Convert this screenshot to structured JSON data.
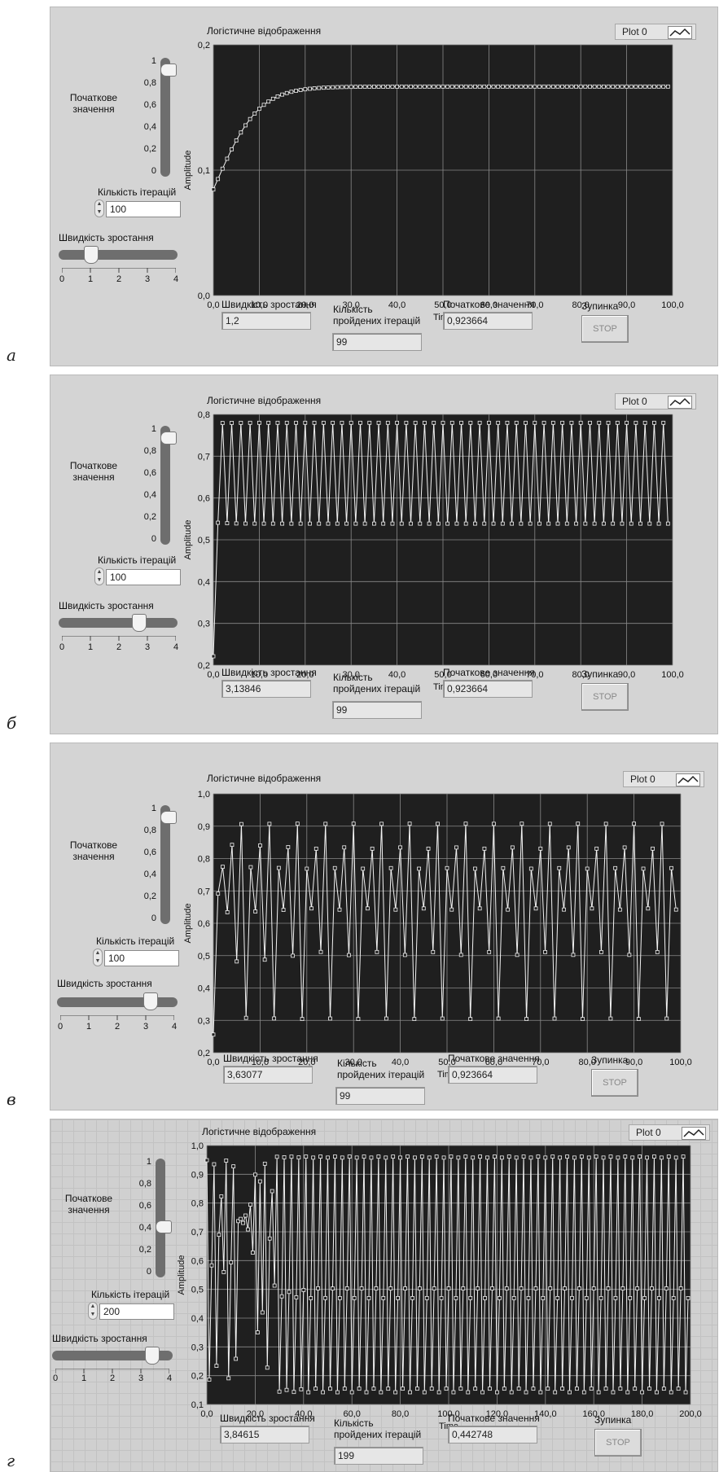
{
  "common": {
    "plot_title": "Логістичне відображення",
    "legend_label": "Plot 0",
    "initial_value_slider_label": "Початкове значення",
    "iterations_label": "Кількість ітерацій",
    "growth_slider_label": "Швидкість зростання",
    "growth_indicator_label": "Швидкість зростання",
    "passed_label": "Кількість пройдених ітерацій",
    "initial_indicator_label": "Початкове значення",
    "stop_label": "Зупинка",
    "stop_button": "STOP",
    "ylabel": "Amplitude",
    "xlabel": "Time",
    "vslider_ticks": [
      "1",
      "0,8",
      "0,6",
      "0,4",
      "0,2",
      "0"
    ],
    "hslider_ticks": [
      "0",
      "1",
      "2",
      "3",
      "4"
    ],
    "icons": [
      "legend-plot-icon",
      "stepper-icon"
    ]
  },
  "panels": [
    {
      "letter": "а",
      "iterations": "100",
      "growth_rate": "1,2",
      "iterations_passed": "99",
      "initial_value": "0,923664",
      "slider_initial_value": 0.92,
      "slider_growth_value": 1.2
    },
    {
      "letter": "б",
      "iterations": "100",
      "growth_rate": "3,13846",
      "iterations_passed": "99",
      "initial_value": "0,923664",
      "slider_initial_value": 0.92,
      "slider_growth_value": 3.13846
    },
    {
      "letter": "в",
      "iterations": "100",
      "growth_rate": "3,63077",
      "iterations_passed": "99",
      "initial_value": "0,923664",
      "slider_initial_value": 0.92,
      "slider_growth_value": 3.63077
    },
    {
      "letter": "г",
      "iterations": "200",
      "growth_rate": "3,84615",
      "iterations_passed": "199",
      "initial_value": "0,442748",
      "slider_initial_value": 0.44,
      "slider_growth_value": 3.84615
    }
  ],
  "chart_data": [
    {
      "type": "line",
      "title": "Логістичне відображення",
      "xlabel": "Time",
      "ylabel": "Amplitude",
      "xlim": [
        0,
        100
      ],
      "ylim": [
        0,
        0.2
      ],
      "x_ticks": [
        "0,0",
        "10,0",
        "20,0",
        "30,0",
        "40,0",
        "50,0",
        "60,0",
        "70,0",
        "80,0",
        "90,0",
        "100,0"
      ],
      "y_ticks": [
        "0,0",
        "0,1",
        "0,2"
      ],
      "series": [
        {
          "name": "Plot 0",
          "r": 1.2,
          "x0": 0.923664,
          "n": 100
        }
      ]
    },
    {
      "type": "line",
      "title": "Логістичне відображення",
      "xlabel": "Time",
      "ylabel": "Amplitude",
      "xlim": [
        0,
        100
      ],
      "ylim": [
        0.2,
        0.8
      ],
      "x_ticks": [
        "0,0",
        "10,0",
        "20,0",
        "30,0",
        "40,0",
        "50,0",
        "60,0",
        "70,0",
        "80,0",
        "90,0",
        "100,0"
      ],
      "y_ticks": [
        "0,2",
        "0,3",
        "0,4",
        "0,5",
        "0,6",
        "0,7",
        "0,8"
      ],
      "series": [
        {
          "name": "Plot 0",
          "r": 3.13846,
          "x0": 0.923664,
          "n": 100
        }
      ]
    },
    {
      "type": "line",
      "title": "Логістичне відображення",
      "xlabel": "Time",
      "ylabel": "Amplitude",
      "xlim": [
        0,
        100
      ],
      "ylim": [
        0.2,
        1.0
      ],
      "x_ticks": [
        "0,0",
        "10,0",
        "20,0",
        "30,0",
        "40,0",
        "50,0",
        "60,0",
        "70,0",
        "80,0",
        "90,0",
        "100,0"
      ],
      "y_ticks": [
        "0,2",
        "0,3",
        "0,4",
        "0,5",
        "0,6",
        "0,7",
        "0,8",
        "0,9",
        "1,0"
      ],
      "series": [
        {
          "name": "Plot 0",
          "r": 3.63077,
          "x0": 0.923664,
          "n": 100
        }
      ]
    },
    {
      "type": "line",
      "title": "Логістичне відображення",
      "xlabel": "Time",
      "ylabel": "Amplitude",
      "xlim": [
        0,
        200
      ],
      "ylim": [
        0.1,
        1.0
      ],
      "x_ticks": [
        "0,0",
        "20,0",
        "40,0",
        "60,0",
        "80,0",
        "100,0",
        "120,0",
        "140,0",
        "160,0",
        "180,0",
        "200,0"
      ],
      "y_ticks": [
        "0,1",
        "0,2",
        "0,3",
        "0,4",
        "0,5",
        "0,6",
        "0,7",
        "0,8",
        "0,9",
        "1,0"
      ],
      "series": [
        {
          "name": "Plot 0",
          "r": 3.84615,
          "x0": 0.442748,
          "n": 200
        }
      ]
    }
  ]
}
